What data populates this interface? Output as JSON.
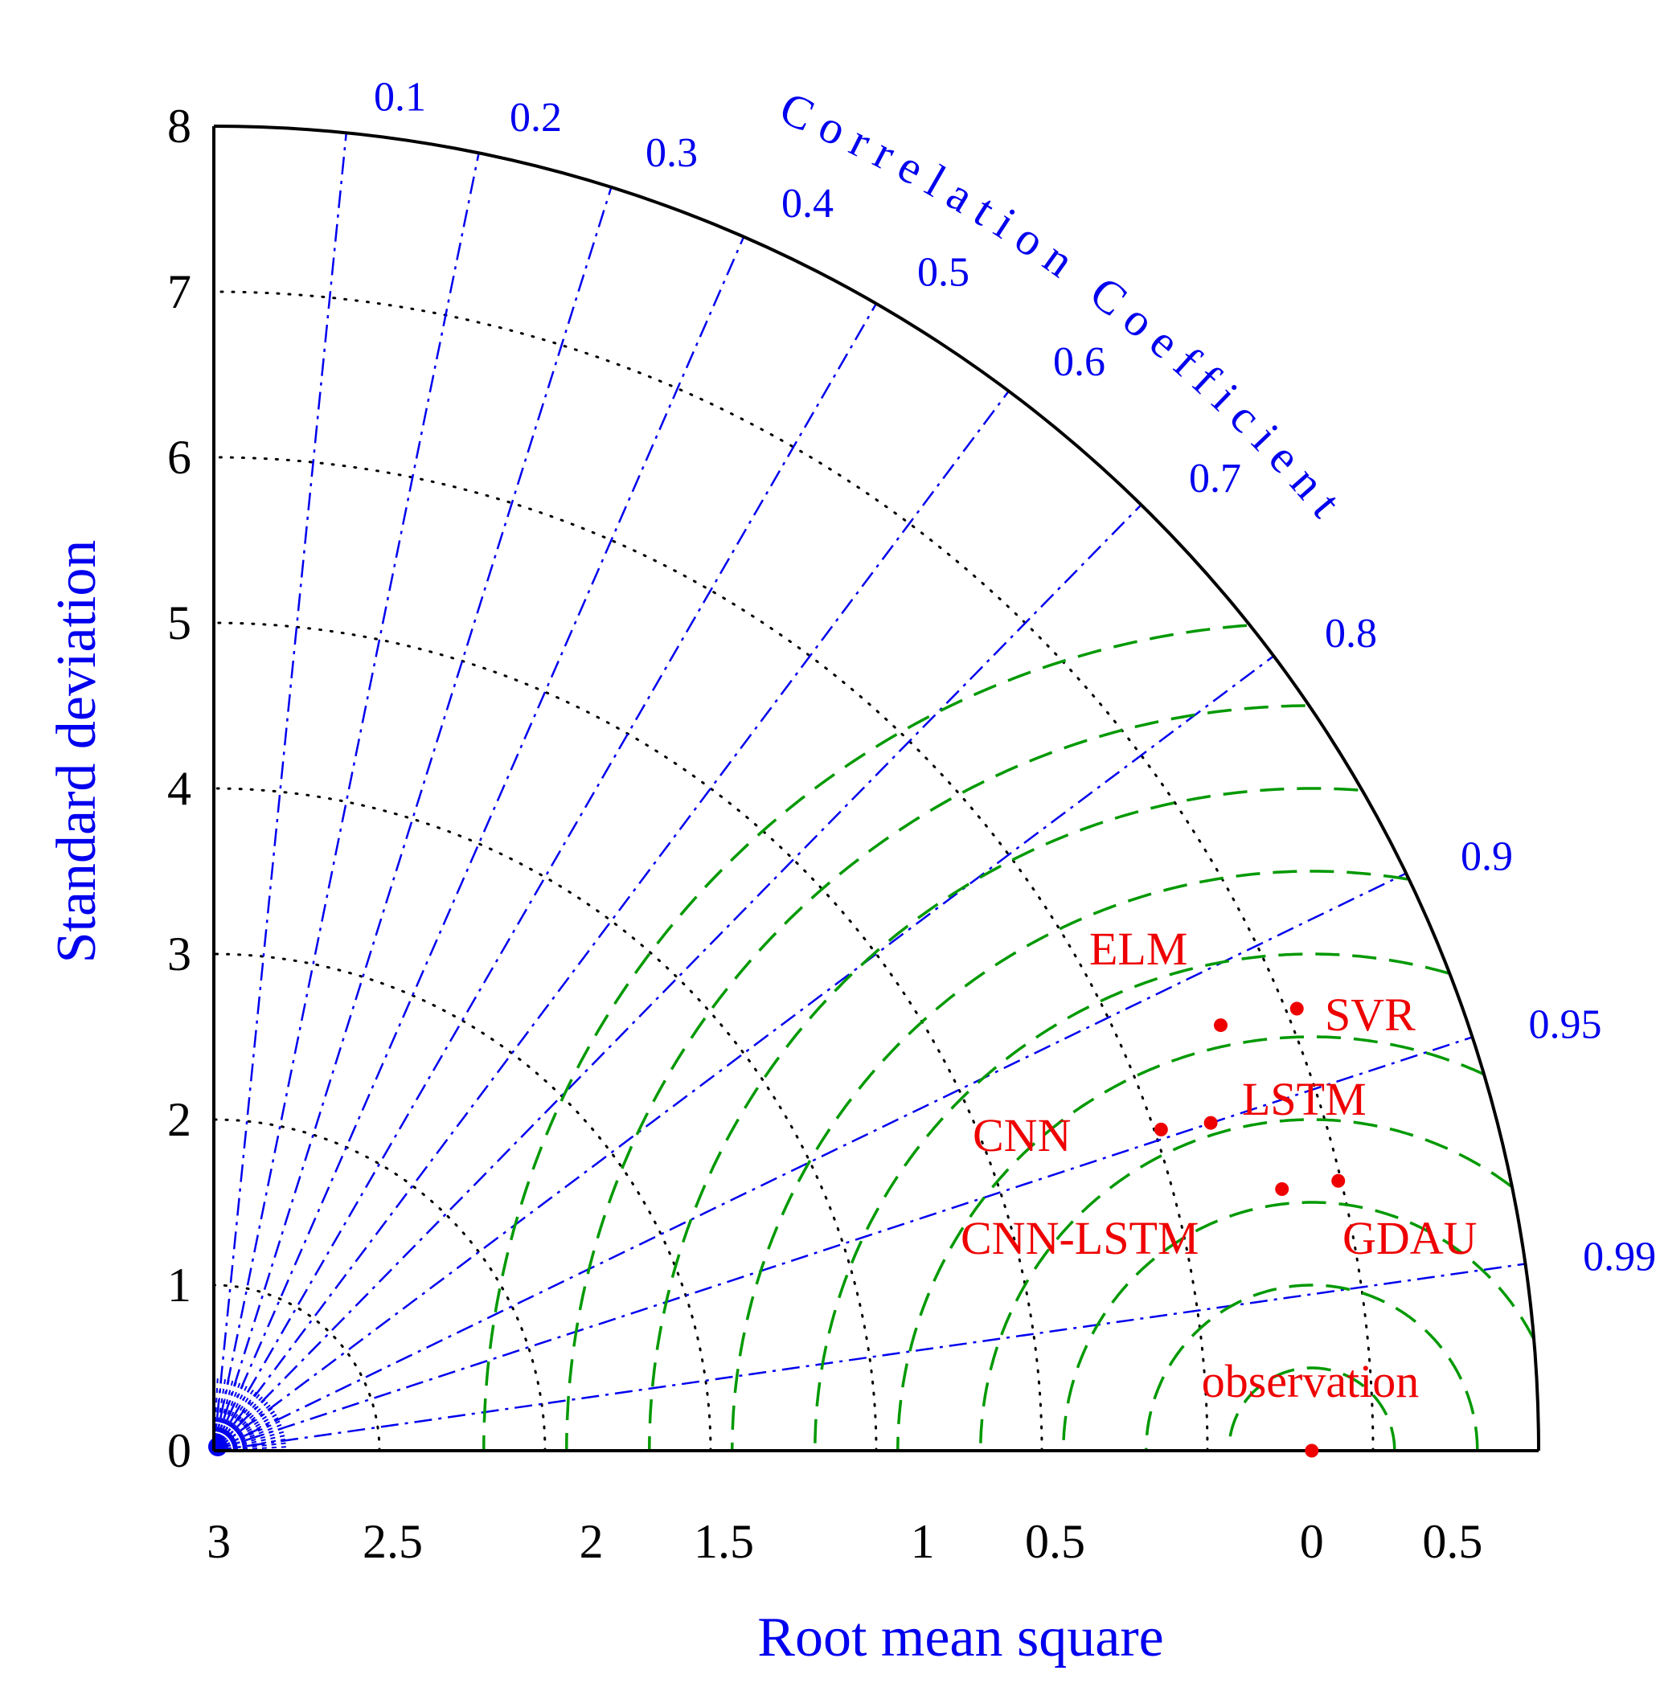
{
  "chart_data": {
    "type": "taylor-diagram",
    "ylabel": "Standard deviation",
    "xlabel": "Root mean square",
    "arc_label": "Correlation Coefficient",
    "std_ticks": [
      "0",
      "1",
      "2",
      "3",
      "4",
      "5",
      "6",
      "7",
      "8"
    ],
    "std_max": 8,
    "rms_ticks": [
      "3",
      "2.5",
      "2",
      "1.5",
      "1",
      "0.5",
      "0",
      "0.5"
    ],
    "rms_tick_positions": [
      6.6,
      5.55,
      4.35,
      3.55,
      2.35,
      1.55,
      0,
      0.85
    ],
    "rms_circles": [
      0.5,
      1,
      1.5,
      2,
      2.5,
      3,
      3.5,
      4,
      4.5,
      5
    ],
    "correlation_ticks": [
      {
        "value": 0.1,
        "label": "0.1"
      },
      {
        "value": 0.2,
        "label": "0.2"
      },
      {
        "value": 0.3,
        "label": "0.3"
      },
      {
        "value": 0.4,
        "label": "0.4"
      },
      {
        "value": 0.5,
        "label": "0.5"
      },
      {
        "value": 0.6,
        "label": "0.6"
      },
      {
        "value": 0.7,
        "label": "0.7"
      },
      {
        "value": 0.8,
        "label": "0.8"
      },
      {
        "value": 0.9,
        "label": "0.9"
      },
      {
        "value": 0.95,
        "label": "0.95"
      },
      {
        "value": 0.99,
        "label": "0.99"
      }
    ],
    "reference": {
      "name": "observation",
      "std": 6.63
    },
    "models": [
      {
        "name": "ELM",
        "x": 6.08,
        "y": 2.57
      },
      {
        "name": "SVR",
        "x": 6.54,
        "y": 2.67
      },
      {
        "name": "LSTM",
        "x": 6.02,
        "y": 1.98
      },
      {
        "name": "CNN",
        "x": 5.72,
        "y": 1.94
      },
      {
        "name": "CNN-LSTM",
        "x": 6.45,
        "y": 1.58
      },
      {
        "name": "GDAU",
        "x": 6.79,
        "y": 1.63
      }
    ],
    "colors": {
      "correlation_lines": "#0000ee",
      "rms_circles": "#009900",
      "std_arcs": "#000000",
      "points": "#ee0000"
    }
  }
}
